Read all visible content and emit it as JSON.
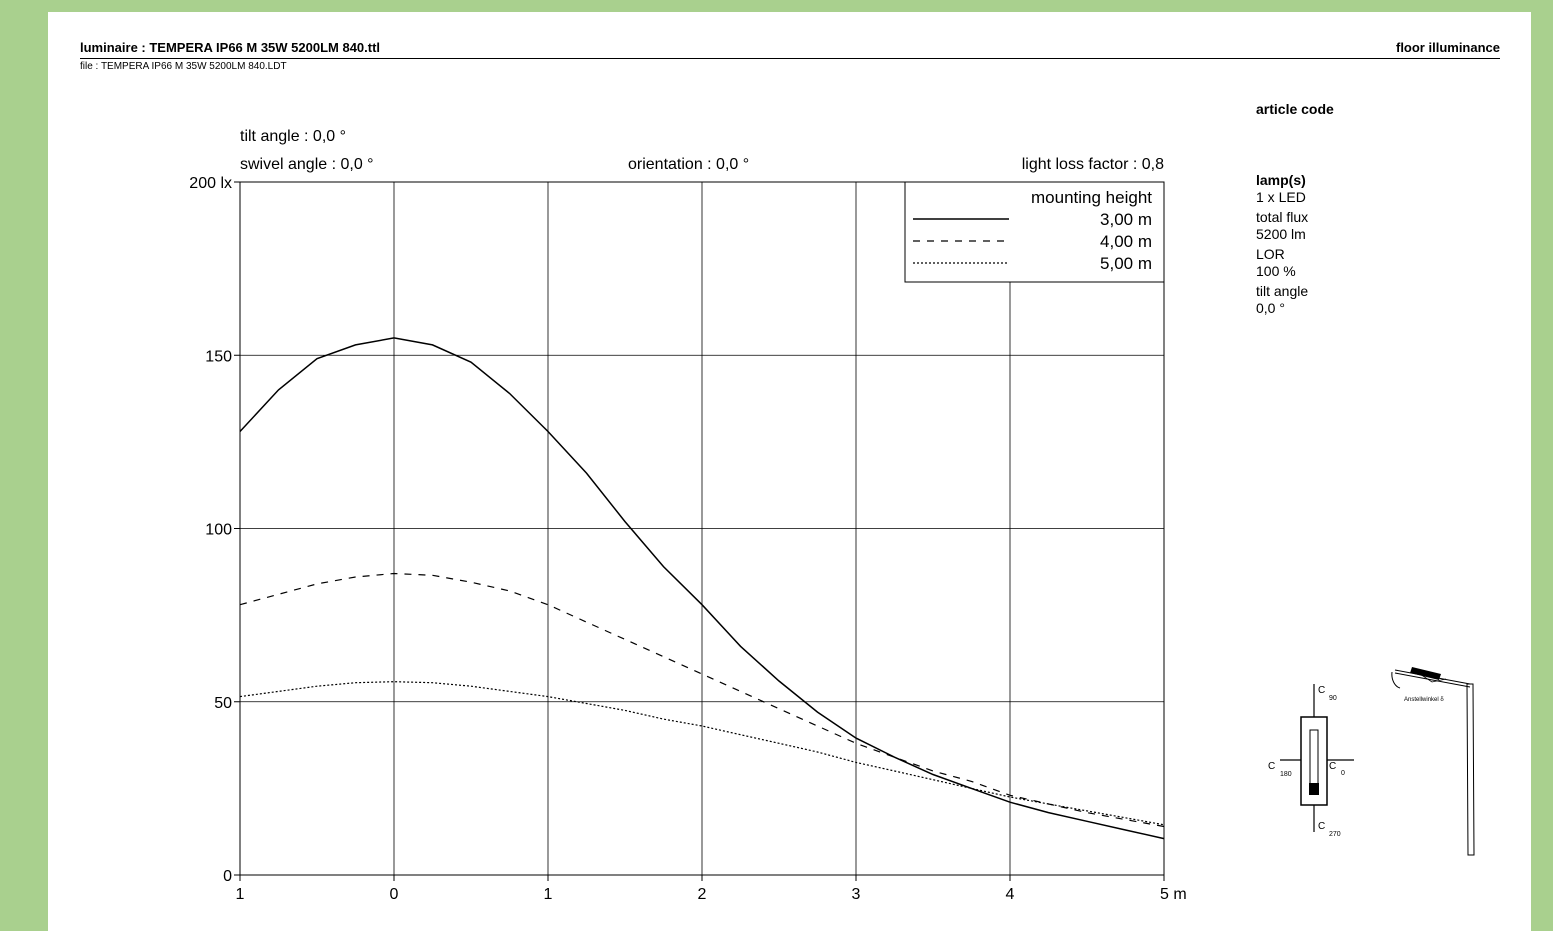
{
  "header": {
    "luminaire": "luminaire :  TEMPERA IP66 M 35W 5200LM 840.ttl",
    "file": "file : TEMPERA IP66 M 35W 5200LM 840.LDT",
    "page_kind": "floor illuminance"
  },
  "info_panel": {
    "article_code_label": "article code",
    "lamps_label": "lamp(s)",
    "lamps_value": "1 x LED",
    "total_flux_label": "total flux",
    "total_flux_value": "5200 lm",
    "lor_label": "LOR",
    "lor_value": "100 %",
    "tilt_label": "tilt angle",
    "tilt_value": "0,0 °"
  },
  "params": {
    "tilt": "tilt angle       : 0,0 °",
    "swivel": "swivel angle  : 0,0 °",
    "orientation": "orientation  : 0,0 °",
    "llf": "light loss factor  :  0,8"
  },
  "diagram_labels": {
    "c90": "C",
    "c90_sub": "90",
    "c180": "C",
    "c180_sub": "180",
    "c0": "C",
    "c0_sub": "0",
    "c270": "C",
    "c270_sub": "270",
    "anstell": "Anstellwinkel δ"
  },
  "chart_data": {
    "type": "line",
    "title": "",
    "xlabel": "",
    "ylabel": "",
    "x_unit": "m",
    "y_unit": "lx",
    "xlim": [
      -1,
      5
    ],
    "ylim": [
      0,
      200
    ],
    "x_tick_values": [
      -1,
      0,
      1,
      2,
      3,
      4,
      5
    ],
    "x_tick_labels": [
      "1",
      "0",
      "1",
      "2",
      "3",
      "4",
      "5 m"
    ],
    "y_tick_values": [
      0,
      50,
      100,
      150,
      200
    ],
    "y_tick_labels": [
      "0",
      "50",
      "100",
      "150",
      "200 lx"
    ],
    "grid": true,
    "legend": {
      "title": "mounting height",
      "placement": "top-right"
    },
    "series": [
      {
        "name": "3,00 m",
        "style": "solid",
        "x": [
          -1,
          -0.75,
          -0.5,
          -0.25,
          0,
          0.25,
          0.5,
          0.75,
          1,
          1.25,
          1.5,
          1.75,
          2,
          2.25,
          2.5,
          2.75,
          3,
          3.25,
          3.5,
          3.75,
          4,
          4.25,
          4.5,
          4.75,
          5
        ],
        "values": [
          128,
          140,
          149,
          153,
          155,
          153,
          148,
          139,
          128,
          116,
          102,
          89,
          78,
          66,
          56,
          47,
          39.5,
          34,
          29,
          25,
          21,
          18,
          15.5,
          13,
          10.5
        ]
      },
      {
        "name": "4,00 m",
        "style": "dashed",
        "x": [
          -1,
          -0.75,
          -0.5,
          -0.25,
          0,
          0.25,
          0.5,
          0.75,
          1,
          1.25,
          1.5,
          1.75,
          2,
          2.25,
          2.5,
          2.75,
          3,
          3.25,
          3.5,
          3.75,
          4,
          4.25,
          4.5,
          4.75,
          5
        ],
        "values": [
          78,
          81,
          84,
          86,
          87,
          86.5,
          84.5,
          82,
          78,
          73,
          68,
          63,
          58,
          53,
          48,
          43,
          38,
          34,
          30,
          27,
          23,
          20.5,
          18,
          16,
          14
        ]
      },
      {
        "name": "5,00 m",
        "style": "dotted",
        "x": [
          -1,
          -0.75,
          -0.5,
          -0.25,
          0,
          0.25,
          0.5,
          0.75,
          1,
          1.25,
          1.5,
          1.75,
          2,
          2.25,
          2.5,
          2.75,
          3,
          3.25,
          3.5,
          3.75,
          4,
          4.25,
          4.5,
          4.75,
          5
        ],
        "values": [
          51.5,
          53,
          54.5,
          55.5,
          55.8,
          55.5,
          54.5,
          53,
          51.5,
          49.5,
          47.5,
          45,
          43,
          40.5,
          38,
          35.5,
          32.5,
          30,
          27.5,
          25,
          22.5,
          20.5,
          18.5,
          16.5,
          14.5
        ]
      }
    ]
  }
}
